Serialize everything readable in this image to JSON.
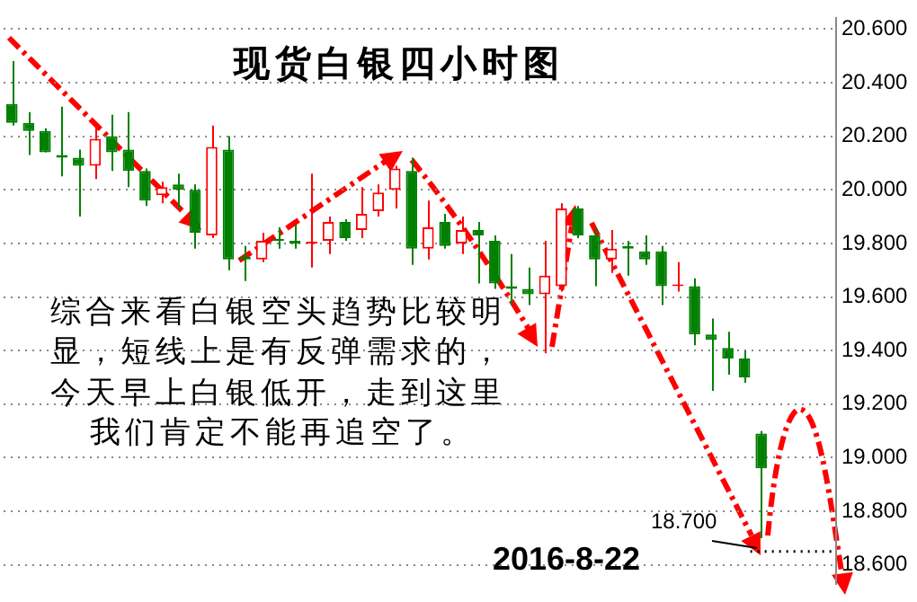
{
  "chart_data": {
    "type": "candlestick",
    "title": "现货白银四小时图",
    "categories": [
      null,
      null,
      null,
      null,
      null,
      null,
      null,
      null,
      null,
      null,
      null,
      null,
      null,
      null,
      null,
      null,
      null,
      null,
      null,
      null,
      null,
      null,
      null,
      null,
      null,
      null,
      null,
      null,
      null,
      null,
      null,
      null,
      null,
      null,
      null,
      null,
      null,
      null,
      null,
      null,
      null,
      null,
      null,
      null,
      null,
      null,
      null,
      null,
      null,
      null
    ],
    "ohlc": [
      [
        20.32,
        20.48,
        20.24,
        20.25
      ],
      [
        20.25,
        20.29,
        20.13,
        20.22
      ],
      [
        20.22,
        20.23,
        20.14,
        20.14
      ],
      [
        20.13,
        20.31,
        20.05,
        20.12
      ],
      [
        20.12,
        20.15,
        19.9,
        20.09
      ],
      [
        20.09,
        20.24,
        20.04,
        20.19
      ],
      [
        20.2,
        20.28,
        20.07,
        20.14
      ],
      [
        20.15,
        20.29,
        20.01,
        20.07
      ],
      [
        20.07,
        20.08,
        19.94,
        19.96
      ],
      [
        19.98,
        20.03,
        19.95,
        20.01
      ],
      [
        20.02,
        20.06,
        19.93,
        20.0
      ],
      [
        20.0,
        20.02,
        19.78,
        19.84
      ],
      [
        19.83,
        20.24,
        19.82,
        20.16
      ],
      [
        20.15,
        20.2,
        19.7,
        19.74
      ],
      [
        19.75,
        19.79,
        19.66,
        19.74
      ],
      [
        19.74,
        19.84,
        19.73,
        19.81
      ],
      [
        19.81,
        19.86,
        19.78,
        19.81
      ],
      [
        19.81,
        19.87,
        19.78,
        19.8
      ],
      [
        19.8,
        20.06,
        19.71,
        19.8
      ],
      [
        19.81,
        19.9,
        19.76,
        19.88
      ],
      [
        19.88,
        19.89,
        19.81,
        19.82
      ],
      [
        19.85,
        20.01,
        19.82,
        19.91
      ],
      [
        19.92,
        20.02,
        19.9,
        19.99
      ],
      [
        20.0,
        20.09,
        19.93,
        20.08
      ],
      [
        20.07,
        20.12,
        19.72,
        19.78
      ],
      [
        19.78,
        19.96,
        19.74,
        19.86
      ],
      [
        19.88,
        19.91,
        19.78,
        19.79
      ],
      [
        19.8,
        19.9,
        19.76,
        19.85
      ],
      [
        19.85,
        19.88,
        19.65,
        19.83
      ],
      [
        19.81,
        19.83,
        19.63,
        19.65
      ],
      [
        19.64,
        19.76,
        19.57,
        19.63
      ],
      [
        19.63,
        19.71,
        19.57,
        19.61
      ],
      [
        19.61,
        19.81,
        19.39,
        19.68
      ],
      [
        19.64,
        19.95,
        19.62,
        19.93
      ],
      [
        19.93,
        19.94,
        19.82,
        19.83
      ],
      [
        19.83,
        19.86,
        19.64,
        19.74
      ],
      [
        19.74,
        19.85,
        19.69,
        19.78
      ],
      [
        19.79,
        19.81,
        19.68,
        19.78
      ],
      [
        19.77,
        19.83,
        19.72,
        19.74
      ],
      [
        19.77,
        19.79,
        19.57,
        19.64
      ],
      [
        19.64,
        19.73,
        19.62,
        19.64
      ],
      [
        19.64,
        19.67,
        19.42,
        19.46
      ],
      [
        19.46,
        19.52,
        19.25,
        19.44
      ],
      [
        19.41,
        19.47,
        19.31,
        19.37
      ],
      [
        19.37,
        19.4,
        19.28,
        19.3
      ],
      [
        19.09,
        19.1,
        18.7,
        18.96
      ],
      null,
      null,
      null,
      null
    ],
    "colors": [
      "#008000",
      "#008000",
      "#008000",
      "#008000",
      "#008000",
      "#ff0000",
      "#008000",
      "#008000",
      "#008000",
      "#ff0000",
      "#008000",
      "#008000",
      "#ff0000",
      "#008000",
      "#008000",
      "#ff0000",
      "#008000",
      "#008000",
      "#ff0000",
      "#ff0000",
      "#008000",
      "#ff0000",
      "#ff0000",
      "#ff0000",
      "#008000",
      "#ff0000",
      "#008000",
      "#ff0000",
      "#008000",
      "#008000",
      "#008000",
      "#008000",
      "#ff0000",
      "#ff0000",
      "#008000",
      "#008000",
      "#ff0000",
      "#008000",
      "#008000",
      "#008000",
      "#ff0000",
      "#008000",
      "#008000",
      "#008000",
      "#008000",
      "#008000",
      null,
      null,
      null,
      null
    ],
    "ylim": [
      18.53,
      20.64
    ],
    "yticks": [
      {
        "value": 18.6,
        "label": "18.600"
      },
      {
        "value": 18.8,
        "label": "18.800"
      },
      {
        "value": 19.0,
        "label": "19.000"
      },
      {
        "value": 19.2,
        "label": "19.200"
      },
      {
        "value": 19.4,
        "label": "19.400"
      },
      {
        "value": 19.6,
        "label": "19.600"
      },
      {
        "value": 19.8,
        "label": "19.800"
      },
      {
        "value": 20.0,
        "label": "20.000"
      },
      {
        "value": 20.2,
        "label": "20.200"
      },
      {
        "value": 20.4,
        "label": "20.400"
      },
      {
        "value": 20.6,
        "label": "20.600"
      }
    ],
    "grid": "y",
    "tick_labels": "y",
    "ref_lines": [
      {
        "axis": "y",
        "value": 18.65,
        "line_style": "dotted",
        "color": "#000000"
      }
    ],
    "annotations": [
      "综合来看白银空头趋势比较明",
      "显，短线上是有反弹需求的，",
      "今天早上白银低开，走到这里",
      "我们肯定不能再追空了。",
      "2016-8-22",
      "18.700"
    ]
  }
}
